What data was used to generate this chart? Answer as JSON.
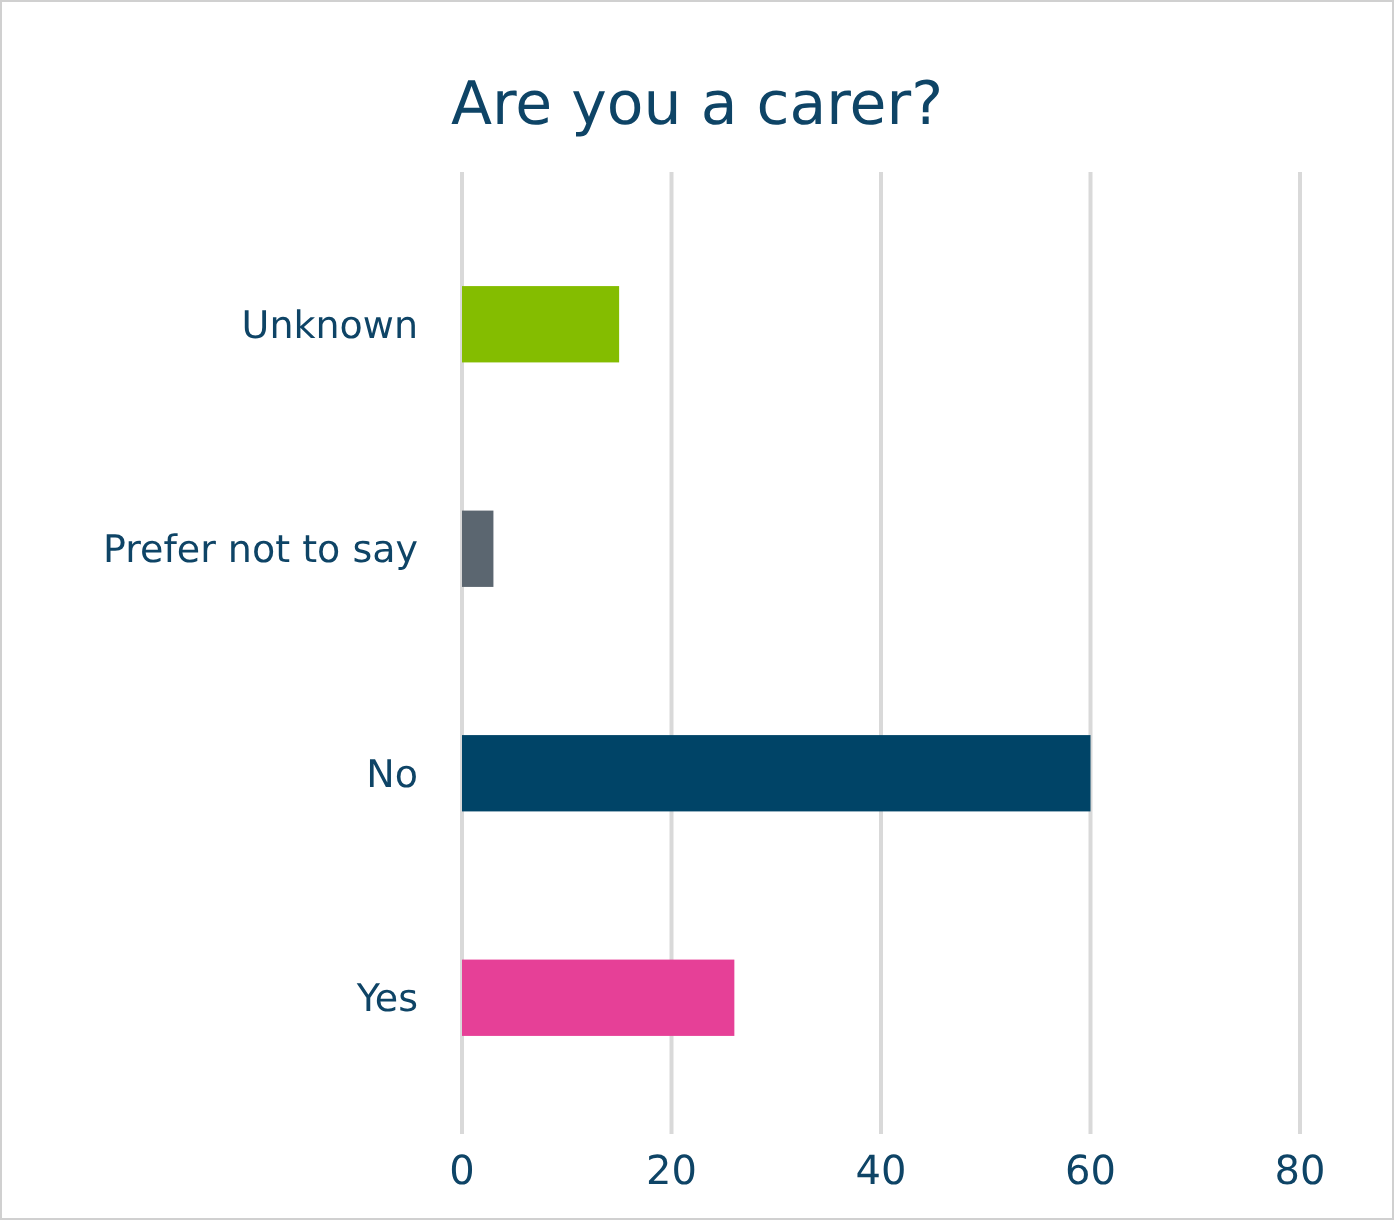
{
  "chart_data": {
    "type": "bar",
    "orientation": "horizontal",
    "title": "Are you a carer?",
    "categories": [
      "Unknown",
      "Prefer not to say",
      "No",
      "Yes"
    ],
    "values": [
      15,
      3,
      60,
      26
    ],
    "colors": [
      "#84bd00",
      "#5b6670",
      "#004467",
      "#e64097"
    ],
    "xlim": [
      0,
      80
    ],
    "xticks": [
      0,
      20,
      40,
      60,
      80
    ],
    "grid": "x"
  }
}
